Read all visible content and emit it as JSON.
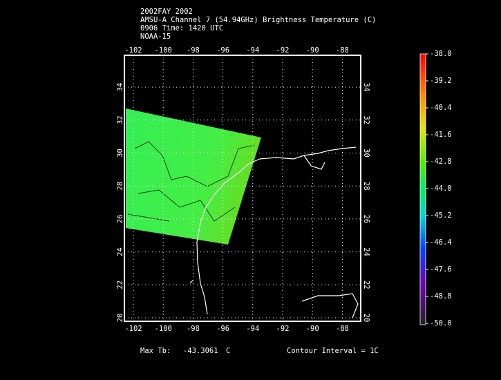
{
  "header": {
    "lines": [
      "2002FAY 2002",
      "AMSU-A Channel 7 (54.94GHz) Brightness Temperature (C)",
      "0906 Time: 1420 UTC",
      "NOAA-15"
    ]
  },
  "map": {
    "lon_labels": [
      "-102",
      "-100",
      "-98",
      "-96",
      "-94",
      "-92",
      "-90",
      "-88"
    ],
    "lat_labels": [
      "20",
      "22",
      "24",
      "26",
      "28",
      "30",
      "32",
      "34"
    ]
  },
  "colorbar": {
    "labels": [
      "-38.0",
      "-39.2",
      "-40.4",
      "-41.6",
      "-42.8",
      "-44.0",
      "-45.2",
      "-46.4",
      "-47.6",
      "-48.8",
      "-50.0"
    ]
  },
  "footer": {
    "max_label": "Max Tb:",
    "max_value": "-43.3061",
    "max_unit": "C",
    "contour": "Contour Interval = 1C"
  }
}
